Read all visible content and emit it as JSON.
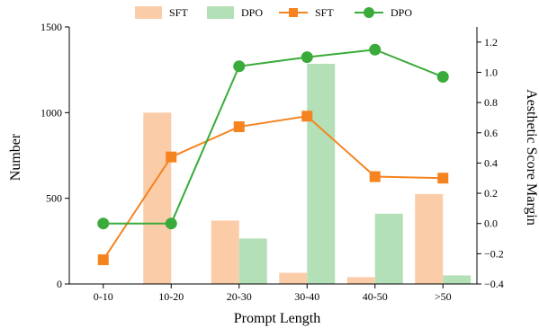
{
  "chart_data": {
    "type": "bar",
    "xlabel": "Prompt Length",
    "ylabel": "Number",
    "y2label": "Aesthetic Score Margin",
    "categories": [
      "0-10",
      "10-20",
      "20-30",
      "30-40",
      "40-50",
      ">50"
    ],
    "ylim": [
      0,
      1500
    ],
    "yticks": [
      0,
      500,
      1000,
      1500
    ],
    "y2lim": [
      -0.4,
      1.3
    ],
    "y2ticks": [
      -0.4,
      -0.2,
      0.0,
      0.2,
      0.4,
      0.6,
      0.8,
      1.0,
      1.2
    ],
    "y2ticklabels": [
      "−0.4",
      "−0.2",
      "0.0",
      "0.2",
      "0.4",
      "0.6",
      "0.8",
      "1.0",
      "1.2"
    ],
    "grid": false,
    "legend_position": "top",
    "bar_series": [
      {
        "name": "SFT",
        "color": "#fbcca8",
        "values": [
          0,
          1000,
          370,
          65,
          40,
          525
        ]
      },
      {
        "name": "DPO",
        "color": "#b4e0b7",
        "values": [
          0,
          0,
          265,
          1285,
          410,
          50
        ]
      }
    ],
    "line_series": [
      {
        "name": "SFT",
        "color": "#f5831f",
        "marker": "square",
        "values": [
          -0.24,
          0.44,
          0.64,
          0.71,
          0.31,
          0.3
        ]
      },
      {
        "name": "DPO",
        "color": "#3aab3a",
        "marker": "circle",
        "values": [
          0.0,
          0.0,
          1.04,
          1.1,
          1.15,
          0.97
        ]
      }
    ]
  }
}
